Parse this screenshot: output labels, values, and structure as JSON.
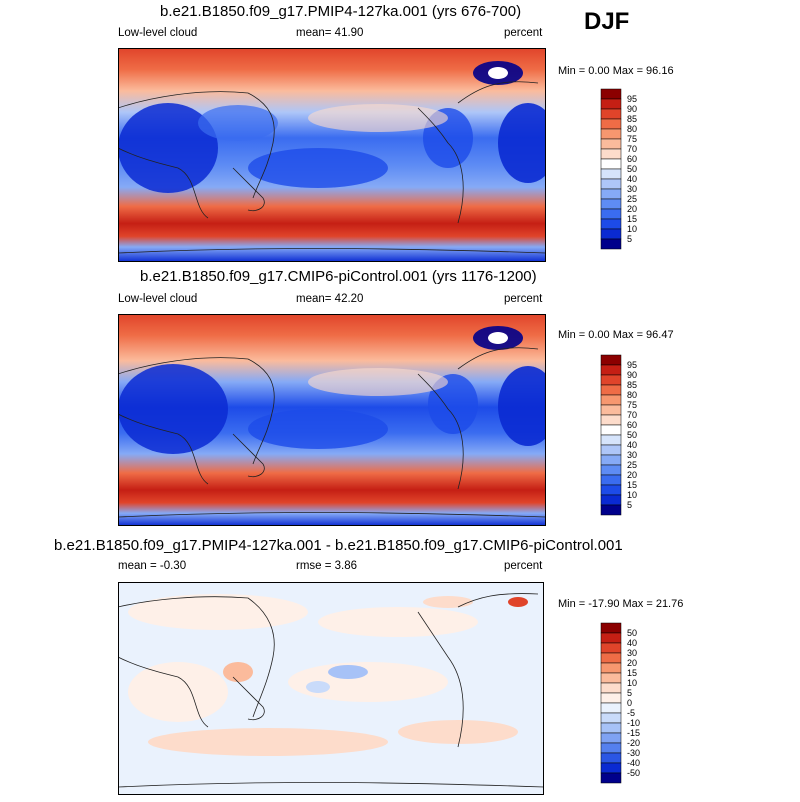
{
  "season": "DJF",
  "chart_data": [
    {
      "type": "heatmap",
      "title": "b.e21.B1850.f09_g17.PMIP4-127ka.001 (yrs 676-700)",
      "left_label": "Low-level cloud",
      "center_label": "mean=  41.90",
      "right_label": "percent",
      "minmax": "Min =   0.00 Max =  96.16",
      "mean": 41.9,
      "min": 0.0,
      "max": 96.16,
      "colorbar": {
        "labels": [
          "5",
          "10",
          "15",
          "20",
          "25",
          "30",
          "40",
          "50",
          "60",
          "70",
          "75",
          "80",
          "85",
          "90",
          "95"
        ],
        "colors": [
          "#00008b",
          "#0a2ad2",
          "#1d4be8",
          "#3a6cf0",
          "#5e8cf4",
          "#86aaf6",
          "#aec6f8",
          "#d6e4fb",
          "#ffffff",
          "#fddccb",
          "#fbbb9c",
          "#f7976f",
          "#ef6c46",
          "#e0442a",
          "#c51f14",
          "#8b0000"
        ]
      }
    },
    {
      "type": "heatmap",
      "title": "b.e21.B1850.f09_g17.CMIP6-piControl.001 (yrs 1176-1200)",
      "left_label": "Low-level cloud",
      "center_label": "mean=  42.20",
      "right_label": "percent",
      "minmax": "Min =   0.00 Max =  96.47",
      "mean": 42.2,
      "min": 0.0,
      "max": 96.47,
      "colorbar": {
        "labels": [
          "5",
          "10",
          "15",
          "20",
          "25",
          "30",
          "40",
          "50",
          "60",
          "70",
          "75",
          "80",
          "85",
          "90",
          "95"
        ],
        "colors": [
          "#00008b",
          "#0a2ad2",
          "#1d4be8",
          "#3a6cf0",
          "#5e8cf4",
          "#86aaf6",
          "#aec6f8",
          "#d6e4fb",
          "#ffffff",
          "#fddccb",
          "#fbbb9c",
          "#f7976f",
          "#ef6c46",
          "#e0442a",
          "#c51f14",
          "#8b0000"
        ]
      }
    },
    {
      "type": "heatmap",
      "title": "b.e21.B1850.f09_g17.PMIP4-127ka.001 - b.e21.B1850.f09_g17.CMIP6-piControl.001",
      "left_label": "mean =  -0.30",
      "center_label": "rmse =   3.86",
      "right_label": "percent",
      "minmax": "Min = -17.90 Max =  21.76",
      "mean": -0.3,
      "rmse": 3.86,
      "min": -17.9,
      "max": 21.76,
      "colorbar": {
        "labels": [
          "50",
          "40",
          "30",
          "20",
          "15",
          "10",
          "5",
          "0",
          "-5",
          "-10",
          "-15",
          "-20",
          "-30",
          "-40",
          "-50"
        ],
        "colors": [
          "#8b0000",
          "#c51f14",
          "#e0442a",
          "#ef6c46",
          "#f7976f",
          "#fbbb9c",
          "#fddccb",
          "#fef0e8",
          "#eaf2fd",
          "#c9dbfa",
          "#a7c2f7",
          "#7fa2f3",
          "#5580ee",
          "#2b56e4",
          "#0a2ad2",
          "#00008b"
        ]
      }
    }
  ]
}
